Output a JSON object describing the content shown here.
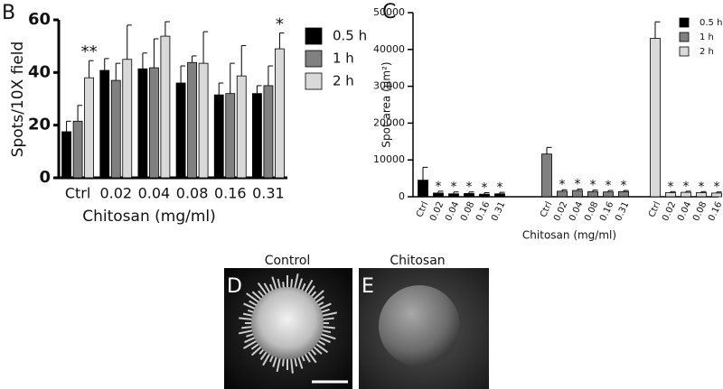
{
  "chart_data": [
    {
      "type": "bar",
      "grouping": "clustered",
      "panel_label": "B",
      "y_label": "Spots/10X field",
      "x_label": "Chitosan (mg/ml)",
      "categories": [
        "Ctrl",
        "0.02",
        "0.04",
        "0.08",
        "0.16",
        "0.31"
      ],
      "series": [
        {
          "name": "0.5 h",
          "color": "#000000",
          "values": [
            17.5,
            40.8,
            41.4,
            36,
            31.5,
            32
          ],
          "errors": [
            4,
            4.5,
            6,
            6.5,
            4.5,
            3
          ]
        },
        {
          "name": "1 h",
          "color": "#808080",
          "values": [
            21.5,
            37,
            41.8,
            43.8,
            32,
            35
          ],
          "errors": [
            6,
            6.5,
            11,
            2.5,
            11.5,
            7.5
          ]
        },
        {
          "name": "2 h",
          "color": "#d9d9d9",
          "values": [
            38,
            45,
            53.8,
            43.5,
            38.7,
            49
          ],
          "errors": [
            6.5,
            13,
            5.5,
            12,
            11.5,
            6
          ],
          "annotations": [
            "**",
            null,
            null,
            null,
            null,
            "*"
          ]
        }
      ],
      "ylim": [
        0,
        60
      ],
      "yticks": [
        0,
        20,
        40,
        60
      ],
      "legend": "right"
    },
    {
      "type": "bar",
      "grouping": "by_series",
      "panel_label": "C",
      "y_label": "Spot area (µm²)",
      "x_label": "Chitosan (mg/ml)",
      "categories": [
        "Ctrl",
        "0.02",
        "0.04",
        "0.08",
        "0.16",
        "0.31"
      ],
      "series": [
        {
          "name": "0.5 h",
          "color": "#000000",
          "values": [
            4500,
            1000,
            800,
            900,
            700,
            800
          ],
          "errors": [
            3500,
            500,
            500,
            400,
            400,
            400
          ],
          "annotations": [
            null,
            "*",
            "*",
            "*",
            "*",
            "*"
          ]
        },
        {
          "name": "1 h",
          "color": "#808080",
          "values": [
            11600,
            1500,
            1700,
            1400,
            1300,
            1400
          ],
          "errors": [
            1800,
            400,
            400,
            400,
            400,
            300
          ],
          "annotations": [
            null,
            "*",
            "*",
            "*",
            "*",
            "*"
          ]
        },
        {
          "name": "2 h",
          "color": "#d9d9d9",
          "values": [
            43000,
            1100,
            1200,
            1100,
            1000,
            900
          ],
          "errors": [
            4500,
            300,
            300,
            300,
            300,
            300
          ],
          "annotations": [
            null,
            "*",
            "*",
            "*",
            "*",
            "*"
          ]
        }
      ],
      "ylim": [
        0,
        50000
      ],
      "yticks": [
        0,
        10000,
        20000,
        30000,
        40000,
        50000
      ],
      "legend": "upper right"
    }
  ],
  "images": [
    {
      "panel_label": "D",
      "title": "Control"
    },
    {
      "panel_label": "E",
      "title": "Chitosan"
    }
  ]
}
